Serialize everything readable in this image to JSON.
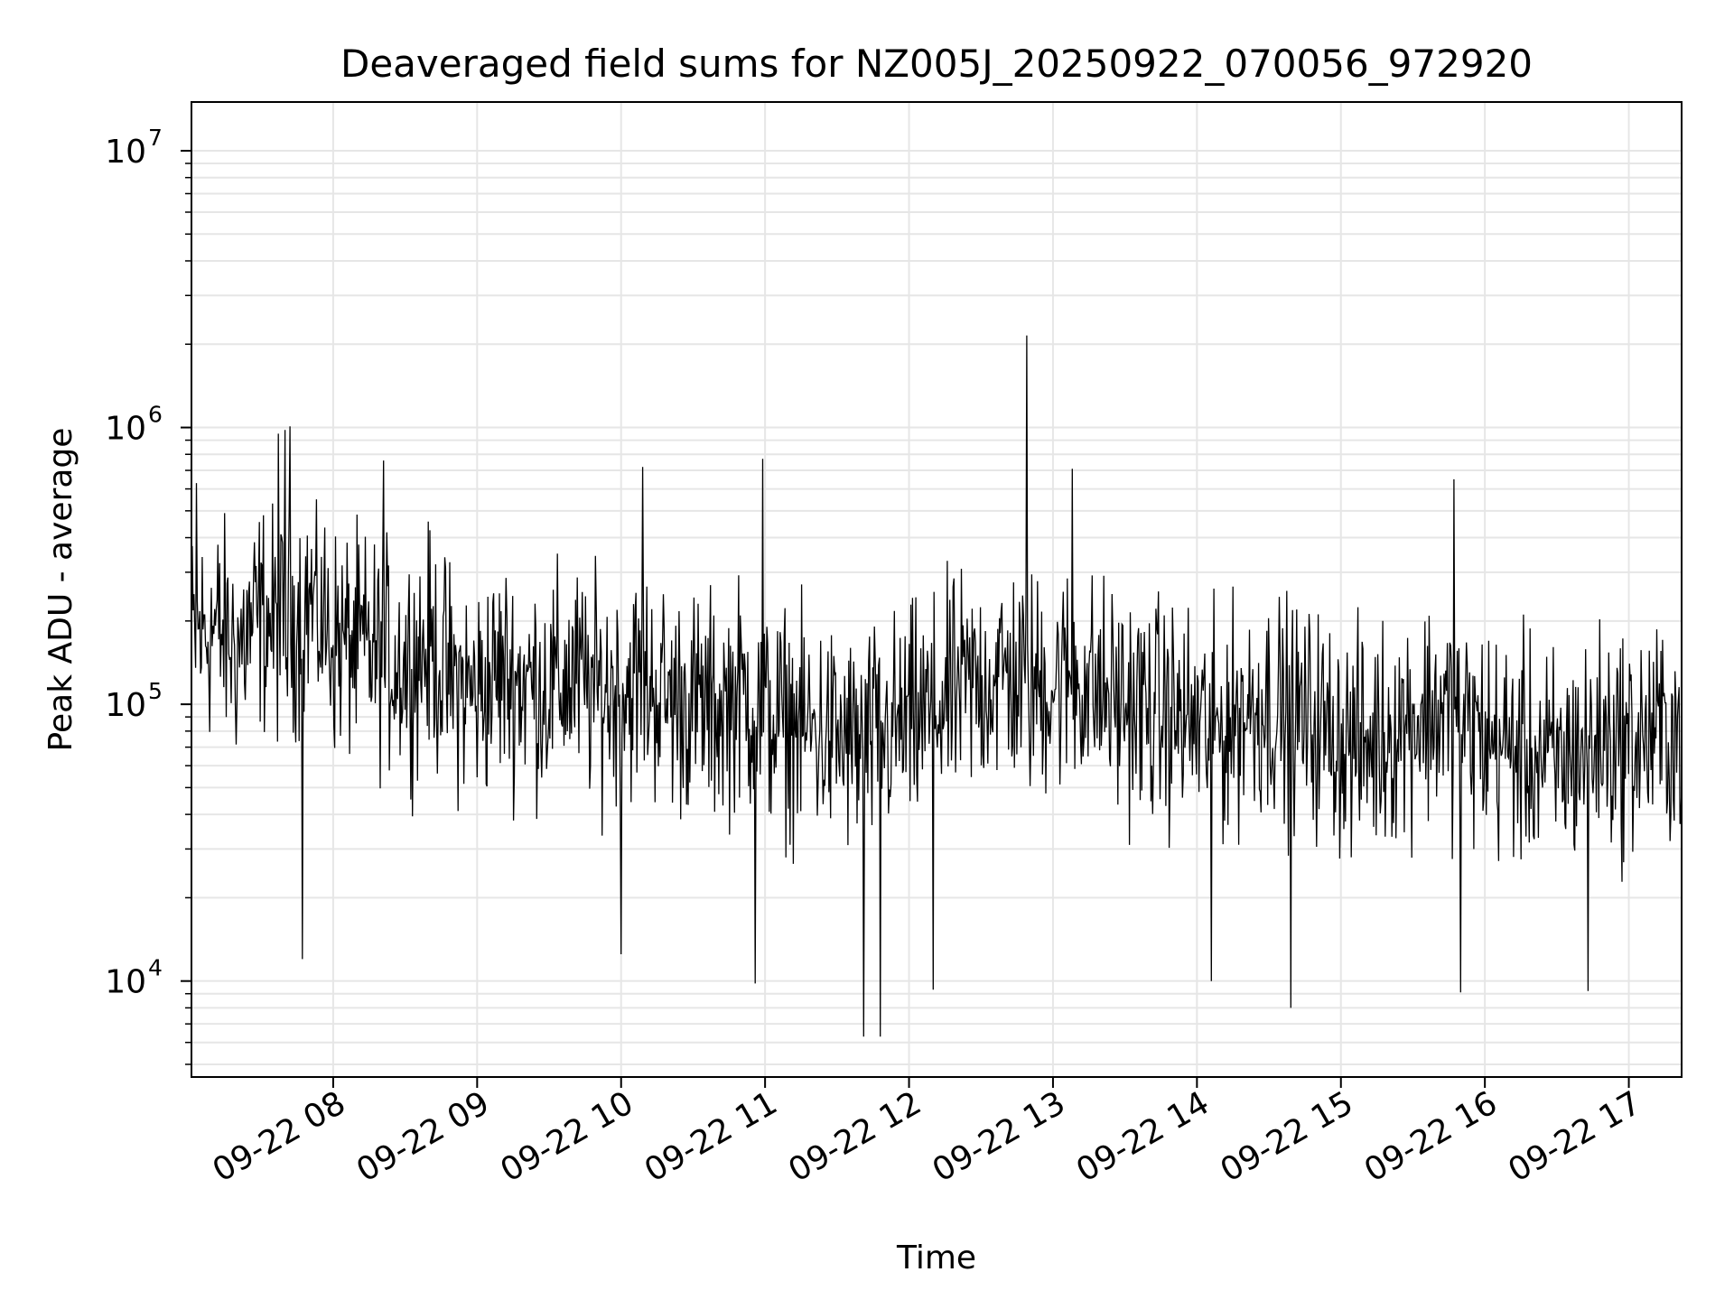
{
  "chart_data": {
    "type": "line",
    "title": "Deaveraged field sums for NZ005J_20250922_070056_972920",
    "xlabel": "Time",
    "ylabel": "Peak ADU - average",
    "yscale": "log",
    "ylim": [
      4500,
      15000000
    ],
    "xlim": [
      "2025-09-22 07:00:56",
      "2025-09-22 17:22:00"
    ],
    "x_ticks": [
      {
        "t": "2025-09-22 08:00",
        "label": "09-22 08"
      },
      {
        "t": "2025-09-22 09:00",
        "label": "09-22 09"
      },
      {
        "t": "2025-09-22 10:00",
        "label": "09-22 10"
      },
      {
        "t": "2025-09-22 11:00",
        "label": "09-22 11"
      },
      {
        "t": "2025-09-22 12:00",
        "label": "09-22 12"
      },
      {
        "t": "2025-09-22 13:00",
        "label": "09-22 13"
      },
      {
        "t": "2025-09-22 14:00",
        "label": "09-22 14"
      },
      {
        "t": "2025-09-22 15:00",
        "label": "09-22 15"
      },
      {
        "t": "2025-09-22 16:00",
        "label": "09-22 16"
      },
      {
        "t": "2025-09-22 17:00",
        "label": "09-22 17"
      }
    ],
    "y_ticks": [
      {
        "value": 10000,
        "base": "10",
        "exp": "4"
      },
      {
        "value": 100000,
        "base": "10",
        "exp": "5"
      },
      {
        "value": 1000000,
        "base": "10",
        "exp": "6"
      },
      {
        "value": 10000000,
        "base": "10",
        "exp": "7"
      }
    ],
    "grid": true,
    "line_color": "#000000",
    "grid_color": "#e6e6e6",
    "series": [
      {
        "x": [
          "2025-09-22 07:00:56",
          "2025-09-22 07:10",
          "2025-09-22 07:20",
          "2025-09-22 07:30",
          "2025-09-22 07:40",
          "2025-09-22 07:50",
          "2025-09-22 08:00",
          "2025-09-22 08:10",
          "2025-09-22 08:20",
          "2025-09-22 08:30",
          "2025-09-22 08:40",
          "2025-09-22 08:50",
          "2025-09-22 09:00",
          "2025-09-22 09:10",
          "2025-09-22 09:20",
          "2025-09-22 09:30",
          "2025-09-22 09:40",
          "2025-09-22 09:50",
          "2025-09-22 10:00",
          "2025-09-22 10:10",
          "2025-09-22 10:20",
          "2025-09-22 10:30",
          "2025-09-22 10:40",
          "2025-09-22 10:50",
          "2025-09-22 11:00",
          "2025-09-22 11:10",
          "2025-09-22 11:20",
          "2025-09-22 11:30",
          "2025-09-22 11:40",
          "2025-09-22 11:50",
          "2025-09-22 12:00",
          "2025-09-22 12:10",
          "2025-09-22 12:20",
          "2025-09-22 12:30",
          "2025-09-22 12:40",
          "2025-09-22 12:50",
          "2025-09-22 13:00",
          "2025-09-22 13:10",
          "2025-09-22 13:20",
          "2025-09-22 13:30",
          "2025-09-22 13:40",
          "2025-09-22 13:50",
          "2025-09-22 14:00",
          "2025-09-22 14:10",
          "2025-09-22 14:20",
          "2025-09-22 14:30",
          "2025-09-22 14:40",
          "2025-09-22 14:50",
          "2025-09-22 15:00",
          "2025-09-22 15:10",
          "2025-09-22 15:20",
          "2025-09-22 15:30",
          "2025-09-22 15:40",
          "2025-09-22 15:50",
          "2025-09-22 16:00",
          "2025-09-22 16:10",
          "2025-09-22 16:20",
          "2025-09-22 16:30",
          "2025-09-22 16:40",
          "2025-09-22 16:50",
          "2025-09-22 17:00",
          "2025-09-22 17:10",
          "2025-09-22 17:20"
        ],
        "y": [
          170000,
          190000,
          160000,
          210000,
          180000,
          240000,
          170000,
          160000,
          150000,
          140000,
          160000,
          120000,
          110000,
          130000,
          120000,
          115000,
          125000,
          110000,
          115000,
          120000,
          105000,
          100000,
          95000,
          110000,
          90000,
          85000,
          80000,
          75000,
          70000,
          78000,
          85000,
          95000,
          110000,
          120000,
          130000,
          115000,
          120000,
          125000,
          110000,
          100000,
          95000,
          90000,
          85000,
          80000,
          95000,
          100000,
          90000,
          85000,
          75000,
          70000,
          80000,
          90000,
          95000,
          85000,
          75000,
          70000,
          65000,
          60000,
          70000,
          75000,
          72000,
          78000,
          80000
        ],
        "noise": {
          "upper": 500000,
          "lower": 20000
        },
        "peaks": [
          {
            "x": "2025-09-22 07:40",
            "y": 980000
          },
          {
            "x": "2025-09-22 07:42",
            "y": 1010000
          },
          {
            "x": "2025-09-22 07:37",
            "y": 950000
          },
          {
            "x": "2025-09-22 08:21",
            "y": 760000
          },
          {
            "x": "2025-09-22 10:09",
            "y": 720000
          },
          {
            "x": "2025-09-22 10:59",
            "y": 770000
          },
          {
            "x": "2025-09-22 12:49",
            "y": 2150000
          },
          {
            "x": "2025-09-22 13:08",
            "y": 710000
          },
          {
            "x": "2025-09-22 15:47",
            "y": 650000
          },
          {
            "x": "2025-09-22 07:03",
            "y": 630000
          }
        ],
        "troughs": [
          {
            "x": "2025-09-22 07:47",
            "y": 12000
          },
          {
            "x": "2025-09-22 10:56",
            "y": 9800
          },
          {
            "x": "2025-09-22 11:41",
            "y": 6300
          },
          {
            "x": "2025-09-22 11:48",
            "y": 6300
          },
          {
            "x": "2025-09-22 12:10",
            "y": 9300
          },
          {
            "x": "2025-09-22 14:06",
            "y": 10000
          },
          {
            "x": "2025-09-22 14:39",
            "y": 8000
          },
          {
            "x": "2025-09-22 15:50",
            "y": 9100
          },
          {
            "x": "2025-09-22 16:43",
            "y": 9200
          },
          {
            "x": "2025-09-22 10:00",
            "y": 12500
          }
        ]
      }
    ]
  }
}
